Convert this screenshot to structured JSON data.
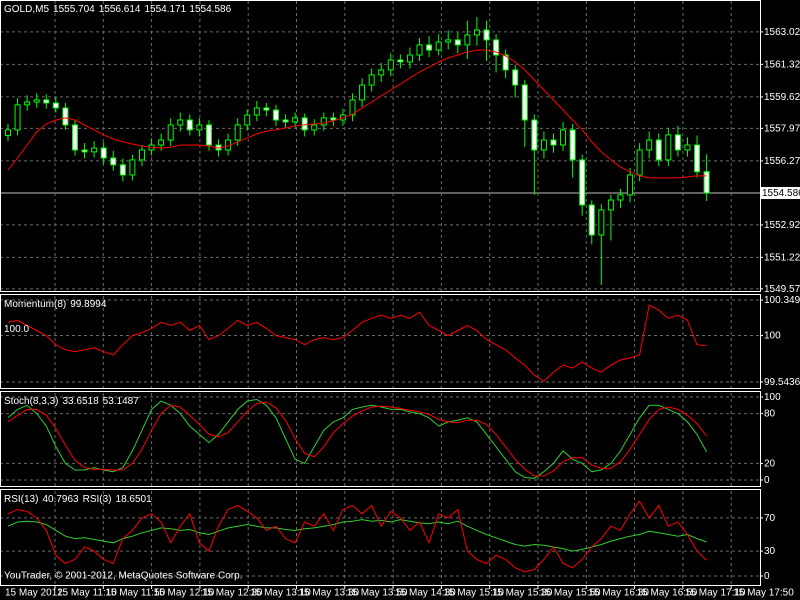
{
  "chart_data": [
    {
      "type": "candlestick",
      "header": [
        "GOLD,M5",
        1555.704,
        1556.614,
        1554.171,
        1554.586
      ],
      "x_labels": [
        "15 May 2012",
        "15 May 11:10",
        "15 May 11:50",
        "15 May 12:10",
        "15 May 12:30",
        "15 May 13:10",
        "15 May 13:30",
        "15 May 13:50",
        "15 May 14:30",
        "15 May 15:10",
        "15 May 15:30",
        "15 May 15:50",
        "15 May 16:30",
        "15 May 16:50",
        "15 May 17:10",
        "15 May 17:50"
      ],
      "open": [
        1557.6,
        1557.89,
        1559.2,
        1559.35,
        1559.46,
        1559.3,
        1559.04,
        1558.15,
        1556.84,
        1556.74,
        1556.94,
        1556.42,
        1556.06,
        1555.53,
        1556.32,
        1556.84,
        1557.1,
        1557.36,
        1558.15,
        1558.41,
        1557.89,
        1558.15,
        1557.1,
        1556.84,
        1557.36,
        1558.15,
        1558.67,
        1559.04,
        1558.93,
        1558.41,
        1558.31,
        1558.52,
        1557.89,
        1558.15,
        1558.52,
        1558.41,
        1558.67,
        1559.46,
        1560.24,
        1560.77,
        1561.03,
        1561.55,
        1561.45,
        1561.81,
        1562.34,
        1562.07,
        1562.49,
        1562.6,
        1562.34,
        1562.86,
        1563.12,
        1562.6,
        1561.81,
        1561.03,
        1560.24,
        1558.41,
        1556.84,
        1557.36,
        1557.1,
        1557.89,
        1556.32,
        1553.96,
        1552.39,
        1553.7,
        1554.22,
        1554.49,
        1555.53,
        1556.84,
        1557.36,
        1556.32,
        1557.63,
        1556.84,
        1557.1,
        1555.704
      ],
      "high": [
        1558.2,
        1559.55,
        1559.7,
        1559.8,
        1559.75,
        1559.6,
        1559.3,
        1558.4,
        1557.2,
        1557.3,
        1557.25,
        1556.8,
        1556.4,
        1556.6,
        1557.1,
        1557.45,
        1557.7,
        1558.5,
        1558.8,
        1558.7,
        1558.5,
        1558.4,
        1557.4,
        1557.7,
        1558.5,
        1558.95,
        1559.4,
        1559.3,
        1559.2,
        1558.7,
        1558.8,
        1558.75,
        1558.45,
        1558.8,
        1558.8,
        1559.0,
        1559.8,
        1560.6,
        1561.1,
        1561.4,
        1561.9,
        1561.85,
        1562.2,
        1562.7,
        1562.8,
        1562.9,
        1563.1,
        1563.0,
        1563.6,
        1563.8,
        1563.6,
        1562.9,
        1562.1,
        1561.3,
        1560.5,
        1558.7,
        1557.8,
        1557.7,
        1558.3,
        1558.2,
        1556.6,
        1554.2,
        1554.0,
        1554.5,
        1554.8,
        1555.9,
        1557.2,
        1557.8,
        1557.7,
        1558.0,
        1558.1,
        1557.5,
        1557.6,
        1556.614
      ],
      "low": [
        1557.3,
        1557.6,
        1558.9,
        1559.05,
        1559.0,
        1558.8,
        1557.9,
        1556.55,
        1556.4,
        1556.45,
        1556.1,
        1555.75,
        1555.2,
        1555.25,
        1556.0,
        1556.55,
        1556.8,
        1557.05,
        1557.8,
        1557.6,
        1557.55,
        1556.8,
        1556.5,
        1556.55,
        1557.05,
        1557.85,
        1558.35,
        1558.6,
        1558.1,
        1558.0,
        1558.0,
        1557.55,
        1557.6,
        1557.85,
        1558.1,
        1558.1,
        1558.35,
        1559.1,
        1559.9,
        1560.4,
        1560.7,
        1561.1,
        1561.1,
        1561.5,
        1561.7,
        1561.8,
        1562.1,
        1561.9,
        1561.6,
        1562.3,
        1561.5,
        1560.9,
        1560.6,
        1559.6,
        1557.0,
        1554.5,
        1556.4,
        1556.7,
        1556.8,
        1555.4,
        1553.4,
        1551.9,
        1549.78,
        1552.1,
        1553.8,
        1554.1,
        1555.2,
        1556.4,
        1556.0,
        1556.0,
        1556.5,
        1556.5,
        1555.4,
        1554.171
      ],
      "close": [
        1557.89,
        1559.2,
        1559.35,
        1559.46,
        1559.3,
        1559.04,
        1558.15,
        1556.84,
        1556.74,
        1556.94,
        1556.42,
        1556.06,
        1555.53,
        1556.32,
        1556.84,
        1557.1,
        1557.36,
        1558.15,
        1558.41,
        1557.89,
        1558.15,
        1557.1,
        1556.84,
        1557.36,
        1558.15,
        1558.67,
        1559.04,
        1558.93,
        1558.41,
        1558.31,
        1558.52,
        1557.89,
        1558.15,
        1558.52,
        1558.41,
        1558.67,
        1559.46,
        1560.24,
        1560.77,
        1561.03,
        1561.55,
        1561.45,
        1561.81,
        1562.34,
        1562.07,
        1562.49,
        1562.6,
        1562.34,
        1562.86,
        1563.12,
        1562.6,
        1561.81,
        1561.03,
        1560.24,
        1558.41,
        1556.84,
        1557.36,
        1557.1,
        1557.89,
        1556.32,
        1553.96,
        1552.39,
        1553.7,
        1554.22,
        1554.49,
        1555.53,
        1556.84,
        1557.36,
        1556.32,
        1557.63,
        1556.84,
        1557.1,
        1555.7,
        1554.586
      ],
      "up_color": "#000000",
      "down_color": "#ffffff",
      "wick_color": "#00ff00",
      "last_color": "#c0c0c0",
      "series": [
        {
          "color": "#ff0000",
          "values": [
            1555.79,
            1556.42,
            1557.1,
            1557.78,
            1558.2,
            1558.41,
            1558.52,
            1558.41,
            1558.15,
            1557.89,
            1557.63,
            1557.42,
            1557.26,
            1557.15,
            1557.05,
            1556.98,
            1556.94,
            1556.98,
            1557.1,
            1557.1,
            1557.1,
            1557.05,
            1556.94,
            1557.05,
            1557.26,
            1557.47,
            1557.68,
            1557.83,
            1557.89,
            1557.99,
            1558.1,
            1558.15,
            1558.2,
            1558.25,
            1558.36,
            1558.52,
            1558.72,
            1559.04,
            1559.35,
            1559.67,
            1559.98,
            1560.29,
            1560.61,
            1560.92,
            1561.18,
            1561.45,
            1561.66,
            1561.81,
            1561.97,
            1562.07,
            1562.07,
            1561.97,
            1561.76,
            1561.45,
            1561.03,
            1560.5,
            1559.98,
            1559.46,
            1558.93,
            1558.41,
            1557.89,
            1557.26,
            1556.74,
            1556.32,
            1555.95,
            1555.69,
            1555.48,
            1555.38,
            1555.38,
            1555.38,
            1555.38,
            1555.43,
            1555.48,
            1555.48
          ]
        }
      ],
      "ylim": [
        1549.51,
        1564.69
      ],
      "yticks": [
        {
          "value": 1563.02,
          "label": "1563.020"
        },
        {
          "value": 1561.32,
          "label": "1561.320"
        },
        {
          "value": 1559.62,
          "label": "1559.620"
        },
        {
          "value": 1557.97,
          "label": "1557.970"
        },
        {
          "value": 1556.27,
          "label": "1556.270"
        },
        {
          "value": 1552.92,
          "label": "1552.920"
        },
        {
          "value": 1551.22,
          "label": "1551.220"
        },
        {
          "value": 1549.57,
          "label": "1549.570"
        }
      ],
      "grid": true
    },
    {
      "type": "line",
      "header": [
        "Momentum(8)",
        99.8994
      ],
      "level_labels": [
        {
          "value": 100,
          "label": "100.0"
        }
      ],
      "series": [
        {
          "color": "#ff0000",
          "values": [
            100.13,
            100.15,
            100.1,
            100.05,
            100.0,
            99.91,
            99.86,
            99.84,
            99.86,
            99.88,
            99.84,
            99.81,
            99.91,
            100.0,
            100.03,
            100.07,
            100.13,
            100.1,
            100.13,
            100.05,
            100.1,
            99.96,
            100.0,
            100.07,
            100.15,
            100.1,
            100.13,
            100.07,
            100.0,
            99.98,
            99.96,
            99.91,
            99.96,
            99.98,
            99.96,
            99.98,
            100.05,
            100.13,
            100.17,
            100.2,
            100.17,
            100.2,
            100.17,
            100.23,
            100.1,
            100.05,
            100.0,
            100.05,
            100.1,
            100.05,
            99.96,
            99.91,
            99.86,
            99.78,
            99.71,
            99.61,
            99.55,
            99.64,
            99.71,
            99.68,
            99.74,
            99.68,
            99.64,
            99.71,
            99.76,
            99.78,
            99.81,
            100.3,
            100.25,
            100.17,
            100.2,
            100.15,
            99.91,
            99.9
          ]
        }
      ],
      "ylim": [
        99.5436,
        100.3494
      ],
      "yticks": [
        100.3494,
        100,
        99.5436
      ],
      "grid": true
    },
    {
      "type": "line",
      "header": [
        "Stoch(8,3,3)",
        33.6518,
        53.1487
      ],
      "series": [
        {
          "color": "#32cd32",
          "values": [
            75,
            85,
            90,
            80,
            65,
            40,
            20,
            12,
            12,
            15,
            12,
            10,
            15,
            35,
            60,
            85,
            95,
            90,
            80,
            65,
            55,
            45,
            55,
            70,
            85,
            95,
            97,
            90,
            75,
            50,
            25,
            20,
            40,
            60,
            70,
            75,
            85,
            88,
            90,
            88,
            85,
            85,
            82,
            80,
            75,
            65,
            70,
            72,
            75,
            70,
            55,
            40,
            25,
            10,
            3,
            2,
            10,
            20,
            35,
            25,
            20,
            10,
            12,
            20,
            35,
            55,
            75,
            90,
            90,
            85,
            80,
            70,
            55,
            34
          ]
        },
        {
          "color": "#ff0000",
          "values": [
            70,
            78,
            85,
            85,
            78,
            62,
            42,
            24,
            15,
            13,
            13,
            12,
            12,
            20,
            37,
            60,
            80,
            90,
            88,
            78,
            67,
            55,
            52,
            57,
            70,
            83,
            92,
            94,
            87,
            72,
            50,
            32,
            28,
            40,
            57,
            68,
            77,
            83,
            88,
            89,
            88,
            86,
            84,
            82,
            79,
            73,
            70,
            69,
            72,
            72,
            67,
            55,
            40,
            25,
            13,
            5,
            5,
            11,
            22,
            27,
            27,
            18,
            14,
            14,
            22,
            37,
            55,
            73,
            85,
            88,
            85,
            78,
            68,
            53
          ]
        }
      ],
      "ylim": [
        0,
        100
      ],
      "yticks": [
        100,
        80,
        20,
        0
      ],
      "grid": true
    },
    {
      "type": "line",
      "header": [
        "RSI(13)",
        40.7963,
        "RSI(3)",
        18.6501
      ],
      "series": [
        {
          "color": "#32cd32",
          "values": [
            60,
            65,
            66,
            65,
            62,
            55,
            48,
            45,
            46,
            44,
            42,
            40,
            45,
            48,
            52,
            55,
            58,
            57,
            55,
            56,
            52,
            50,
            54,
            58,
            60,
            62,
            60,
            58,
            58,
            56,
            55,
            57,
            58,
            60,
            62,
            65,
            66,
            68,
            66,
            67,
            65,
            68,
            66,
            64,
            63,
            65,
            63,
            66,
            60,
            55,
            50,
            46,
            42,
            38,
            36,
            38,
            37,
            35,
            33,
            30,
            32,
            35,
            38,
            42,
            45,
            48,
            50,
            54,
            52,
            50,
            48,
            50,
            45,
            41
          ]
        },
        {
          "color": "#ff0000",
          "values": [
            75,
            80,
            78,
            70,
            55,
            25,
            15,
            20,
            35,
            30,
            20,
            15,
            45,
            55,
            70,
            75,
            65,
            40,
            60,
            75,
            40,
            30,
            60,
            80,
            85,
            78,
            70,
            55,
            60,
            45,
            40,
            65,
            60,
            75,
            55,
            80,
            85,
            75,
            85,
            60,
            78,
            70,
            55,
            65,
            40,
            75,
            70,
            80,
            30,
            20,
            15,
            25,
            20,
            10,
            5,
            8,
            20,
            35,
            15,
            10,
            20,
            35,
            45,
            60,
            55,
            75,
            90,
            70,
            85,
            60,
            65,
            50,
            30,
            19
          ]
        }
      ],
      "ylim": [
        0,
        100
      ],
      "yticks": [
        70,
        30,
        0
      ],
      "grid": true
    }
  ],
  "copyright": "YouTrader, © 2001-2012, MetaQuotes Software Corp."
}
